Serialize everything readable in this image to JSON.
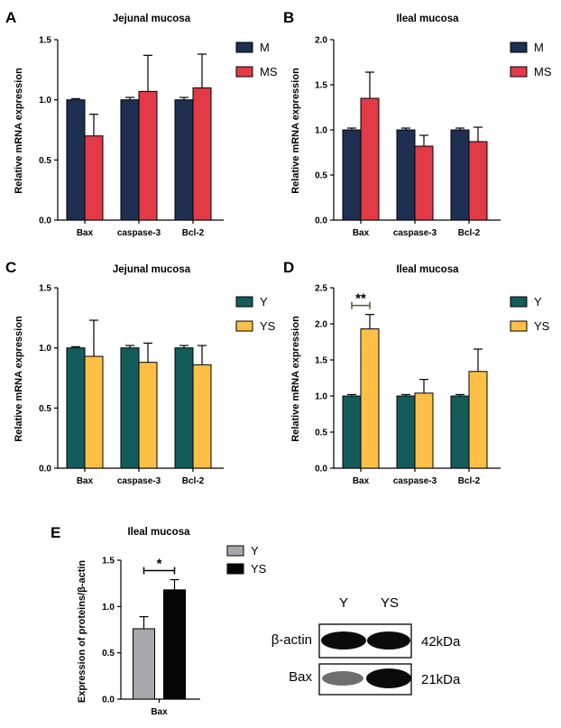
{
  "chart_data": [
    {
      "id": "A",
      "letter": "A",
      "type": "bar",
      "title": "Jejunal mucosa",
      "ylabel": "Relative mRNA expression",
      "categories": [
        "Bax",
        "caspase-3",
        "Bcl-2"
      ],
      "ylim": [
        0,
        1.5
      ],
      "yticks": [
        "0.0",
        "0.5",
        "1.0",
        "1.5"
      ],
      "legend_position": "top-right",
      "series": [
        {
          "name": "M",
          "color": "#1f2f52",
          "values": [
            1.0,
            1.0,
            1.0
          ],
          "errors": [
            0.01,
            0.02,
            0.02
          ]
        },
        {
          "name": "MS",
          "color": "#e23a46",
          "values": [
            0.7,
            1.07,
            1.1
          ],
          "errors": [
            0.18,
            0.3,
            0.28
          ]
        }
      ],
      "annotations": []
    },
    {
      "id": "B",
      "letter": "B",
      "type": "bar",
      "title": "Ileal mucosa",
      "ylabel": "Relative mRNA expression",
      "categories": [
        "Bax",
        "caspase-3",
        "Bcl-2"
      ],
      "ylim": [
        0,
        2.0
      ],
      "yticks": [
        "0.0",
        "0.5",
        "1.0",
        "1.5",
        "2.0"
      ],
      "legend_position": "top-right",
      "series": [
        {
          "name": "M",
          "color": "#1f2f52",
          "values": [
            1.0,
            1.0,
            1.0
          ],
          "errors": [
            0.02,
            0.02,
            0.02
          ]
        },
        {
          "name": "MS",
          "color": "#e23a46",
          "values": [
            1.35,
            0.82,
            0.87
          ],
          "errors": [
            0.29,
            0.12,
            0.16
          ]
        }
      ],
      "annotations": []
    },
    {
      "id": "C",
      "letter": "C",
      "type": "bar",
      "title": "Jejunal mucosa",
      "ylabel": "Relative mRNA expression",
      "categories": [
        "Bax",
        "caspase-3",
        "Bcl-2"
      ],
      "ylim": [
        0,
        1.5
      ],
      "yticks": [
        "0.0",
        "0.5",
        "1.0",
        "1.5"
      ],
      "legend_position": "top-right",
      "series": [
        {
          "name": "Y",
          "color": "#145c5c",
          "values": [
            1.0,
            1.0,
            1.0
          ],
          "errors": [
            0.01,
            0.02,
            0.02
          ]
        },
        {
          "name": "YS",
          "color": "#fdbf45",
          "values": [
            0.93,
            0.88,
            0.86
          ],
          "errors": [
            0.3,
            0.16,
            0.16
          ]
        }
      ],
      "annotations": []
    },
    {
      "id": "D",
      "letter": "D",
      "type": "bar",
      "title": "Ileal mucosa",
      "ylabel": "Relative mRNA expression",
      "categories": [
        "Bax",
        "caspase-3",
        "Bcl-2"
      ],
      "ylim": [
        0,
        2.5
      ],
      "yticks": [
        "0.0",
        "0.5",
        "1.0",
        "1.5",
        "2.0",
        "2.5"
      ],
      "legend_position": "top-right",
      "series": [
        {
          "name": "Y",
          "color": "#145c5c",
          "values": [
            1.0,
            1.0,
            1.0
          ],
          "errors": [
            0.02,
            0.02,
            0.02
          ]
        },
        {
          "name": "YS",
          "color": "#fdbf45",
          "values": [
            1.93,
            1.04,
            1.34
          ],
          "errors": [
            0.2,
            0.19,
            0.31
          ]
        }
      ],
      "annotations": [
        {
          "text": "**",
          "category": "Bax",
          "bracket_color": "#4e5d2e"
        }
      ]
    },
    {
      "id": "E",
      "letter": "E",
      "type": "bar",
      "title": "Ileal mucosa",
      "ylabel": "Expression of proteins/β-actin",
      "categories": [
        "Bax"
      ],
      "ylim": [
        0,
        1.5
      ],
      "yticks": [
        "0.0",
        "0.5",
        "1.0",
        "1.5"
      ],
      "legend_position": "right",
      "series": [
        {
          "name": "Y",
          "color": "#a7a7ad",
          "values": [
            0.76
          ],
          "errors": [
            0.13
          ]
        },
        {
          "name": "YS",
          "color": "#050505",
          "values": [
            1.18
          ],
          "errors": [
            0.11
          ]
        }
      ],
      "annotations": [
        {
          "text": "*",
          "category": "Bax",
          "bracket_color": "#000000"
        }
      ]
    }
  ],
  "western_blot": {
    "lanes": [
      "Y",
      "YS"
    ],
    "rows": [
      {
        "protein": "β-actin",
        "size": "42kDa",
        "band_intensity": [
          1.0,
          1.0
        ]
      },
      {
        "protein": "Bax",
        "size": "21kDa",
        "band_intensity": [
          0.45,
          1.0
        ]
      }
    ]
  }
}
